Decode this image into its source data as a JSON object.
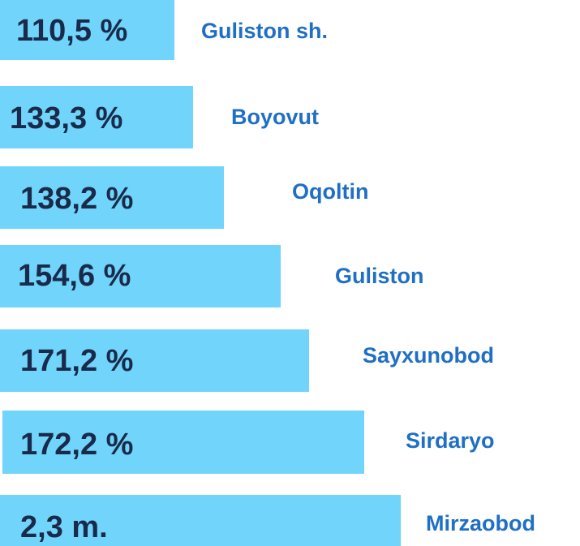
{
  "items": [
    {
      "value": "110,5 %",
      "name": "Guliston sh."
    },
    {
      "value": "133,3 %",
      "name": "Boyovut"
    },
    {
      "value": "138,2 %",
      "name": "Oqoltin"
    },
    {
      "value": "154,6 %",
      "name": "Guliston"
    },
    {
      "value": "171,2 %",
      "name": "Sayxunobod"
    },
    {
      "value": "172,2 %",
      "name": "Sirdaryo"
    },
    {
      "value": "2,3 m.",
      "name": "Mirzaobod"
    }
  ]
}
